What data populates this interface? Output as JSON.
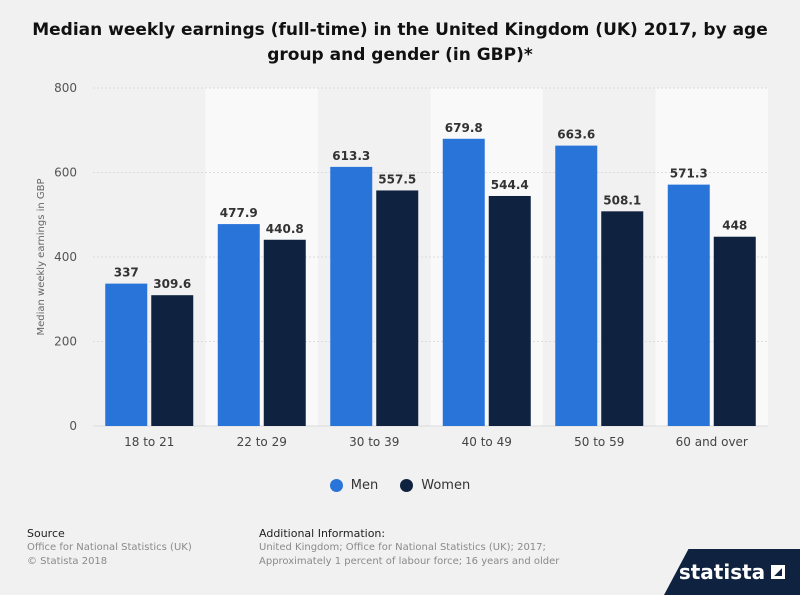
{
  "chart_data": {
    "type": "bar",
    "title": "Median weekly earnings (full-time) in the United Kingdom (UK) 2017, by age group and gender (in GBP)*",
    "ylabel": "Median weekly earnings in GBP",
    "xlabel": "",
    "categories": [
      "18 to 21",
      "22 to 29",
      "30 to 39",
      "40 to 49",
      "50 to 59",
      "60 and over"
    ],
    "series": [
      {
        "name": "Men",
        "color": "#2874d9",
        "values": [
          337,
          477.9,
          613.3,
          679.8,
          663.6,
          571.3
        ],
        "labels": [
          "337",
          "477.9",
          "613.3",
          "679.8",
          "663.6",
          "571.3"
        ]
      },
      {
        "name": "Women",
        "color": "#0f2340",
        "values": [
          309.6,
          440.8,
          557.5,
          544.4,
          508.1,
          448
        ],
        "labels": [
          "309.6",
          "440.8",
          "557.5",
          "544.4",
          "508.1",
          "448"
        ]
      }
    ],
    "ylim": [
      0,
      800
    ],
    "yticks": [
      0,
      200,
      400,
      600,
      800
    ],
    "grid": true,
    "legend": "bottom-center"
  },
  "footer": {
    "source_heading": "Source",
    "source_line1": "Office for National Statistics (UK)",
    "source_line2": "© Statista 2018",
    "info_heading": "Additional Information:",
    "info_line1": "United Kingdom; Office for National Statistics (UK); 2017;",
    "info_line2": "Approximately 1 percent of labour force; 16 years and older"
  },
  "brand": {
    "name": "statista"
  }
}
